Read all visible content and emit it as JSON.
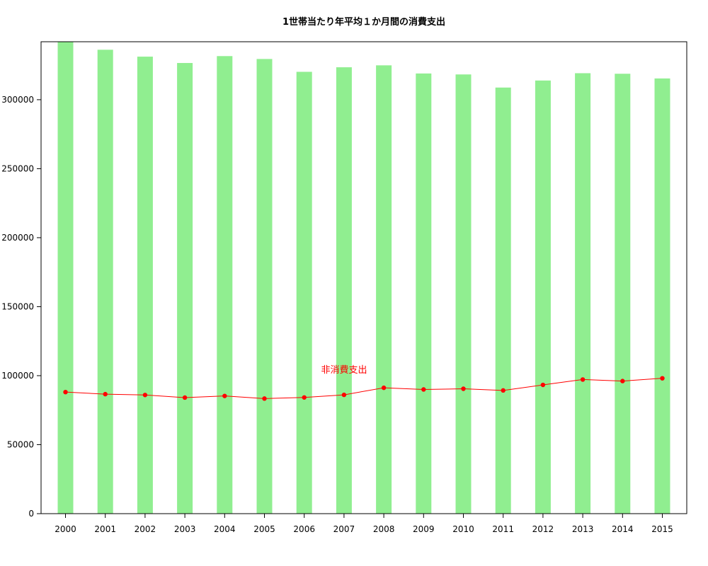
{
  "chart_data": {
    "type": "bar",
    "title": "1世帯当たり年平均１か月間の消費支出",
    "xlabel": "",
    "ylabel": "",
    "categories": [
      "2000",
      "2001",
      "2002",
      "2003",
      "2004",
      "2005",
      "2006",
      "2007",
      "2008",
      "2009",
      "2010",
      "2011",
      "2012",
      "2013",
      "2014",
      "2015"
    ],
    "series": [
      {
        "type": "bar",
        "values": [
          341900,
          336200,
          331200,
          326600,
          331600,
          329500,
          320200,
          323500,
          324900,
          319000,
          318300,
          308800,
          313900,
          319200,
          318800,
          315400
        ],
        "color": "#90EE90"
      },
      {
        "name": "非消費支出",
        "type": "line",
        "values": [
          88100,
          86600,
          86000,
          84100,
          85300,
          83400,
          84200,
          86100,
          91200,
          90000,
          90500,
          89300,
          93300,
          97200,
          96100,
          98100
        ],
        "color": "#FF0000"
      }
    ],
    "annotation": {
      "text": "非消費支出",
      "color": "#FF0000"
    },
    "ylim": [
      0,
      342000
    ],
    "yticks": [
      0,
      50000,
      100000,
      150000,
      200000,
      250000,
      300000
    ],
    "grid": false,
    "legend": "none"
  }
}
